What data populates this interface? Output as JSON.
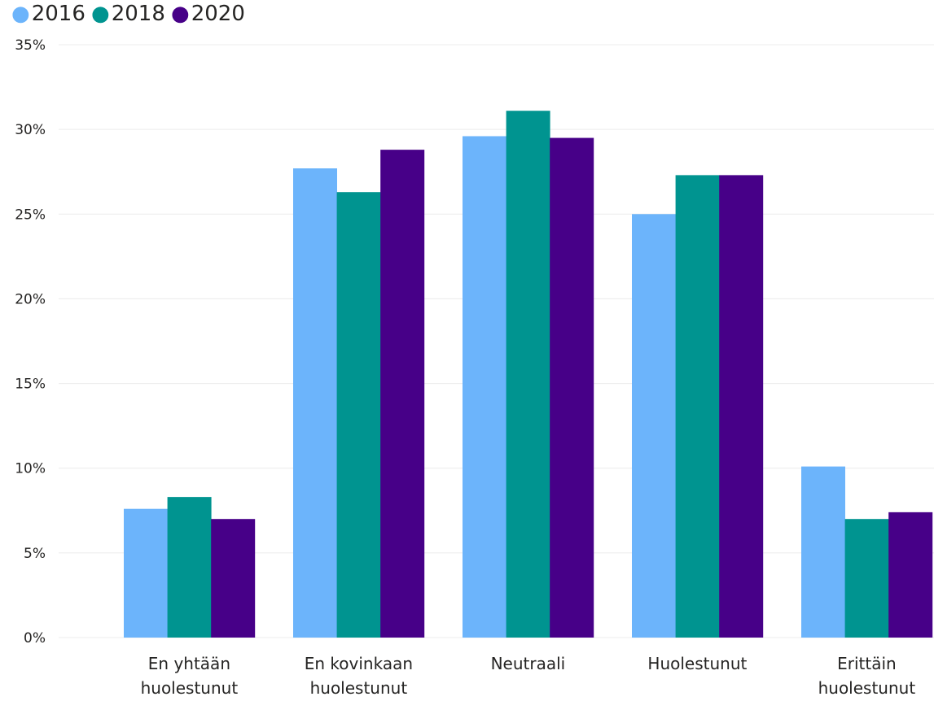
{
  "chart_data": {
    "type": "bar",
    "title": "",
    "xlabel": "",
    "ylabel": "",
    "categories": [
      [
        "En yhtään",
        "huolestunut"
      ],
      [
        "En kovinkaan",
        "huolestunut"
      ],
      [
        "Neutraali"
      ],
      [
        "Huolestunut"
      ],
      [
        "Erittäin",
        "huolestunut"
      ]
    ],
    "series": [
      {
        "name": "2016",
        "color": "#6cb4fb",
        "values": [
          7.6,
          27.7,
          29.6,
          25.0,
          10.1
        ]
      },
      {
        "name": "2018",
        "color": "#009490",
        "values": [
          8.3,
          26.3,
          31.1,
          27.3,
          7.0
        ]
      },
      {
        "name": "2020",
        "color": "#470088",
        "values": [
          7.0,
          28.8,
          29.5,
          27.3,
          7.4
        ]
      }
    ],
    "ylim": [
      0,
      35
    ],
    "y_ticks": [
      0,
      5,
      10,
      15,
      20,
      25,
      30,
      35
    ],
    "y_tick_labels": [
      "0%",
      "5%",
      "10%",
      "15%",
      "20%",
      "25%",
      "30%",
      "35%"
    ],
    "grid": true,
    "legend_position": "top-left",
    "legend_marker": "●"
  }
}
